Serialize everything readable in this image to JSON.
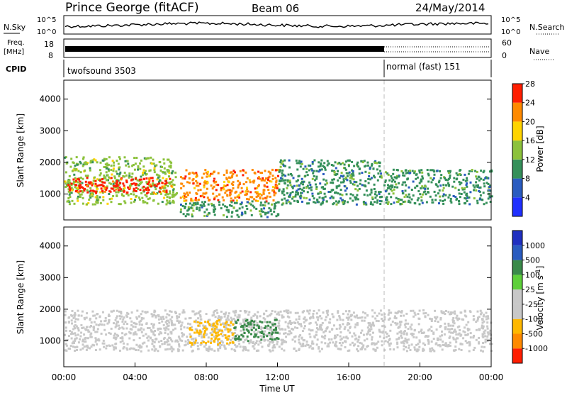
{
  "header": {
    "station": "Prince George (fitACF)",
    "beam": "Beam 06",
    "date": "24/May/2014"
  },
  "panels": {
    "nsky_label": "N.Sky",
    "nsearch_label": "N.Search",
    "freq_label_1": "Freq.",
    "freq_label_2": "[MHz]",
    "nave_label": "Nave",
    "cpid_label": "CPID",
    "nsky_top_tick": "10^5",
    "nsky_bottom_tick": "10^0",
    "freq_top_tick": "18",
    "freq_bottom_tick": "8",
    "nave_top_tick": "60",
    "nave_bottom_tick": "0",
    "cpid_segments": [
      {
        "label": "twofsound 3503",
        "start_hour": 0,
        "end_hour": 18
      },
      {
        "label": "normal (fast) 151",
        "start_hour": 18,
        "end_hour": 24
      }
    ]
  },
  "chart_data": [
    {
      "type": "heatmap",
      "title": "",
      "ylabel": "Slant Range [km]",
      "xlabel": "",
      "ylim": [
        180,
        4600
      ],
      "xlim_hours": [
        0,
        24
      ],
      "yticks": [
        "1000",
        "2000",
        "3000",
        "4000"
      ],
      "colorbar_label": "Power [dB]",
      "colorbar_ticks": [
        "4",
        "8",
        "12",
        "16",
        "20",
        "24",
        "28"
      ],
      "colorbar_colors": [
        "#2030ff",
        "#2a5cc0",
        "#35905a",
        "#8cc23c",
        "#ffd400",
        "#ff8a00",
        "#ff1e00"
      ],
      "regions": [
        {
          "start_hour": 0.0,
          "end_hour": 6.3,
          "range_low": 700,
          "range_high": 2200,
          "power_db": 14
        },
        {
          "start_hour": 0.2,
          "end_hour": 6.0,
          "range_low": 1050,
          "range_high": 1550,
          "power_db": 26
        },
        {
          "start_hour": 6.5,
          "end_hour": 12.0,
          "range_low": 800,
          "range_high": 1800,
          "power_db": 22
        },
        {
          "start_hour": 6.5,
          "end_hour": 12.0,
          "range_low": 300,
          "range_high": 800,
          "power_db": 8
        },
        {
          "start_hour": 12.0,
          "end_hour": 18.0,
          "range_low": 700,
          "range_high": 2100,
          "power_db": 9
        },
        {
          "start_hour": 18.0,
          "end_hour": 24.0,
          "range_low": 700,
          "range_high": 1800,
          "power_db": 10
        }
      ]
    },
    {
      "type": "heatmap",
      "title": "",
      "ylabel": "Slant Range [km]",
      "xlabel": "Time UT",
      "ylim": [
        180,
        4600
      ],
      "xlim_hours": [
        0,
        24
      ],
      "yticks": [
        "1000",
        "2000",
        "3000",
        "4000"
      ],
      "xticks": [
        "00:00",
        "04:00",
        "08:00",
        "12:00",
        "16:00",
        "20:00",
        "00:00"
      ],
      "colorbar_label": "Velocity [m s",
      "colorbar_label_sup": "-1",
      "colorbar_label_close": "]",
      "colorbar_ticks": [
        "-1000",
        "-500",
        "-100",
        "-25",
        "25",
        "100",
        "500",
        "1000"
      ],
      "colorbar_colors": [
        "#ff1e00",
        "#ff8a00",
        "#ffb800",
        "#c8c8c8",
        "#c8c8c8",
        "#5ed03a",
        "#3a8a4a",
        "#2a5cc0",
        "#2030c0"
      ],
      "regions": [
        {
          "start_hour": 0.0,
          "end_hour": 24.0,
          "range_low": 700,
          "range_high": 2000,
          "velocity": 0
        },
        {
          "start_hour": 7.0,
          "end_hour": 9.5,
          "range_low": 900,
          "range_high": 1700,
          "velocity": -400
        },
        {
          "start_hour": 9.5,
          "end_hour": 12.0,
          "range_low": 1000,
          "range_high": 1700,
          "velocity": 150
        }
      ]
    }
  ]
}
